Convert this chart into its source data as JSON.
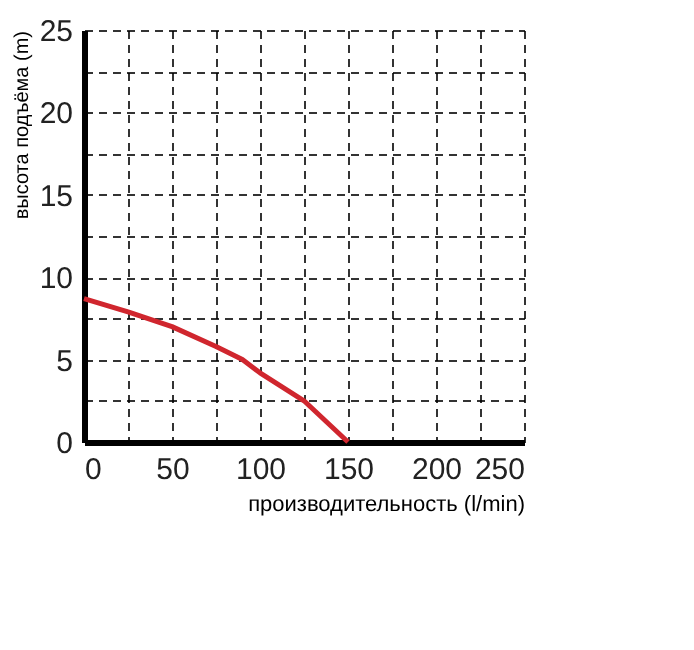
{
  "chart_data": {
    "type": "line",
    "xlabel": "производительность (l/min)",
    "ylabel": "высота подъёма (m)",
    "x": [
      0,
      25,
      50,
      75,
      90,
      100,
      125,
      150
    ],
    "series": [
      {
        "color": "#d0262e",
        "values": [
          8.7,
          7.9,
          7.0,
          5.8,
          5.0,
          4.2,
          2.5,
          0
        ]
      }
    ],
    "xlim": [
      0,
      250
    ],
    "ylim": [
      0,
      25
    ],
    "xticks": [
      0,
      {
        "value": 25,
        "label": null
      },
      50,
      {
        "value": 75,
        "label": null
      },
      100,
      {
        "value": 125,
        "label": null
      },
      150,
      {
        "value": 175,
        "label": null
      },
      200,
      {
        "value": 225,
        "label": null
      },
      250
    ],
    "yticks": [
      0,
      {
        "value": 2.5,
        "label": null
      },
      5,
      {
        "value": 7.5,
        "label": null
      },
      10,
      {
        "value": 12.5,
        "label": null
      },
      15,
      {
        "value": 17.5,
        "label": null
      },
      20,
      {
        "value": 22.5,
        "label": null
      },
      25
    ],
    "grid": true,
    "legend": false,
    "marker": "none",
    "line_style": "solid"
  }
}
